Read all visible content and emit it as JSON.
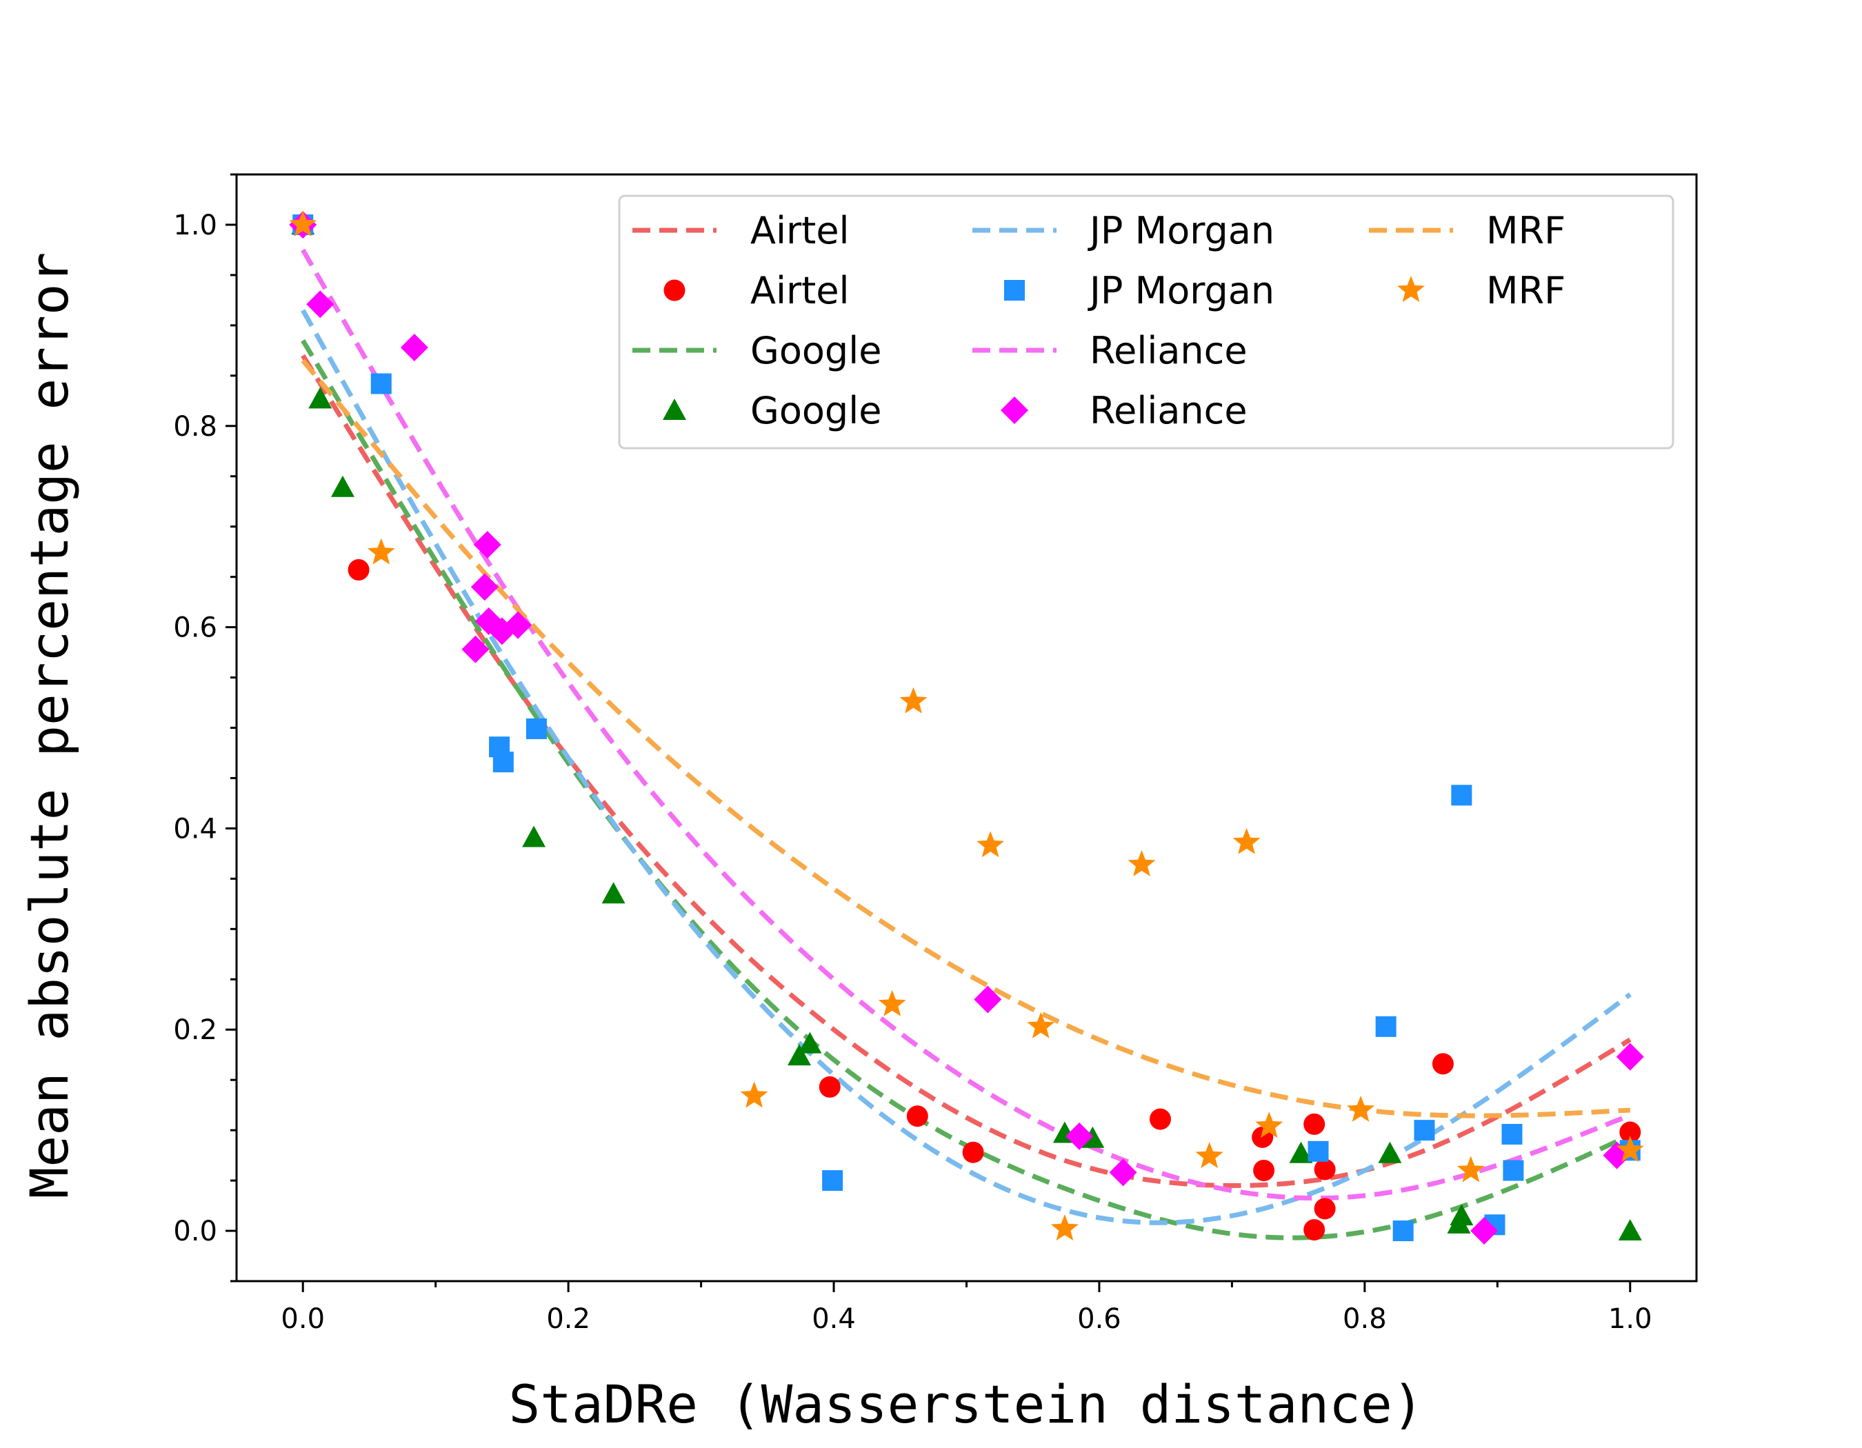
{
  "chart_data": {
    "type": "scatter",
    "xlabel": "StaDRe (Wasserstein distance)",
    "ylabel": "Mean absolute percentage error",
    "xlim": [
      -0.05,
      1.05
    ],
    "ylim": [
      -0.05,
      1.05
    ],
    "xticks": [
      "0.0",
      "0.2",
      "0.4",
      "0.6",
      "0.8",
      "1.0"
    ],
    "yticks": [
      "0.0",
      "0.2",
      "0.4",
      "0.6",
      "0.8",
      "1.0"
    ],
    "grid": false,
    "legend_position": "top-right",
    "legend": [
      {
        "label": "Airtel",
        "kind": "line",
        "series": 0
      },
      {
        "label": "Airtel",
        "kind": "marker",
        "series": 0
      },
      {
        "label": "Google",
        "kind": "line",
        "series": 1
      },
      {
        "label": "Google",
        "kind": "marker",
        "series": 1
      },
      {
        "label": "JP Morgan",
        "kind": "line",
        "series": 2
      },
      {
        "label": "JP Morgan",
        "kind": "marker",
        "series": 2
      },
      {
        "label": "Reliance",
        "kind": "line",
        "series": 3
      },
      {
        "label": "Reliance",
        "kind": "marker",
        "series": 3
      },
      {
        "label": "MRF",
        "kind": "line",
        "series": 4
      },
      {
        "label": "MRF",
        "kind": "marker",
        "series": 4
      }
    ],
    "series": [
      {
        "name": "Airtel",
        "color": "#ff0000",
        "line_color": "#f06060",
        "marker": "circle",
        "fit": {
          "x": [
            0,
            0.2,
            0.4,
            0.6,
            0.7,
            0.8,
            1.0
          ],
          "y": [
            0.87,
            0.47,
            0.2,
            0.06,
            0.045,
            0.06,
            0.19
          ]
        },
        "points": [
          [
            0,
            1.0
          ],
          [
            0.042,
            0.657
          ],
          [
            0.397,
            0.143
          ],
          [
            0.463,
            0.114
          ],
          [
            0.505,
            0.078
          ],
          [
            0.646,
            0.111
          ],
          [
            0.723,
            0.093
          ],
          [
            0.724,
            0.06
          ],
          [
            0.762,
            0.106
          ],
          [
            0.762,
            0.001
          ],
          [
            0.77,
            0.061
          ],
          [
            0.77,
            0.022
          ],
          [
            0.859,
            0.166
          ],
          [
            1.0,
            0.098
          ]
        ]
      },
      {
        "name": "Google",
        "color": "#008000",
        "line_color": "#5aad5a",
        "marker": "triangle",
        "fit": {
          "x": [
            0,
            0.2,
            0.4,
            0.6,
            0.7,
            0.8,
            1.0
          ],
          "y": [
            0.885,
            0.465,
            0.17,
            0.03,
            -0.003,
            -0.001,
            0.095
          ]
        },
        "points": [
          [
            0,
            1.0
          ],
          [
            0.013,
            0.827
          ],
          [
            0.03,
            0.739
          ],
          [
            0.174,
            0.391
          ],
          [
            0.234,
            0.335
          ],
          [
            0.374,
            0.174
          ],
          [
            0.382,
            0.186
          ],
          [
            0.574,
            0.097
          ],
          [
            0.595,
            0.092
          ],
          [
            0.752,
            0.077
          ],
          [
            0.819,
            0.077
          ],
          [
            0.871,
            0.007
          ],
          [
            0.873,
            0.015
          ],
          [
            1.0,
            0.0
          ]
        ]
      },
      {
        "name": "JP Morgan",
        "color": "#1e90ff",
        "line_color": "#78b9ee",
        "marker": "square",
        "fit": {
          "x": [
            0,
            0.2,
            0.4,
            0.6,
            0.7,
            0.8,
            1.0
          ],
          "y": [
            0.915,
            0.47,
            0.155,
            0.013,
            0.015,
            0.06,
            0.235
          ]
        },
        "points": [
          [
            0,
            1.0
          ],
          [
            0.059,
            0.842
          ],
          [
            0.148,
            0.481
          ],
          [
            0.151,
            0.466
          ],
          [
            0.176,
            0.499
          ],
          [
            0.399,
            0.05
          ],
          [
            0.765,
            0.079
          ],
          [
            0.816,
            0.203
          ],
          [
            0.829,
            0.0
          ],
          [
            0.845,
            0.1
          ],
          [
            0.873,
            0.433
          ],
          [
            0.898,
            0.006
          ],
          [
            0.911,
            0.096
          ],
          [
            0.912,
            0.06
          ],
          [
            1.0,
            0.08
          ]
        ]
      },
      {
        "name": "Reliance",
        "color": "#ff00ff",
        "line_color": "#f46ef4",
        "marker": "diamond",
        "fit": {
          "x": [
            0,
            0.2,
            0.4,
            0.6,
            0.7,
            0.8,
            1.0
          ],
          "y": [
            0.975,
            0.545,
            0.25,
            0.08,
            0.04,
            0.035,
            0.115
          ]
        },
        "points": [
          [
            0,
            1.0
          ],
          [
            0.013,
            0.921
          ],
          [
            0.084,
            0.878
          ],
          [
            0.13,
            0.578
          ],
          [
            0.137,
            0.64
          ],
          [
            0.139,
            0.682
          ],
          [
            0.14,
            0.606
          ],
          [
            0.15,
            0.596
          ],
          [
            0.162,
            0.602
          ],
          [
            0.516,
            0.23
          ],
          [
            0.585,
            0.094
          ],
          [
            0.618,
            0.058
          ],
          [
            0.89,
            0.0
          ],
          [
            0.99,
            0.075
          ],
          [
            1.0,
            0.173
          ]
        ]
      },
      {
        "name": "MRF",
        "color": "#ff8c00",
        "line_color": "#f7a848",
        "marker": "star",
        "fit": {
          "x": [
            0,
            0.2,
            0.4,
            0.6,
            0.7,
            0.8,
            1.0
          ],
          "y": [
            0.865,
            0.565,
            0.34,
            0.19,
            0.145,
            0.12,
            0.12
          ]
        },
        "points": [
          [
            0,
            1.0
          ],
          [
            0.059,
            0.674
          ],
          [
            0.34,
            0.134
          ],
          [
            0.444,
            0.225
          ],
          [
            0.46,
            0.526
          ],
          [
            0.518,
            0.383
          ],
          [
            0.556,
            0.203
          ],
          [
            0.574,
            0.002
          ],
          [
            0.632,
            0.364
          ],
          [
            0.683,
            0.074
          ],
          [
            0.711,
            0.386
          ],
          [
            0.728,
            0.104
          ],
          [
            0.797,
            0.12
          ],
          [
            0.88,
            0.06
          ],
          [
            1.0,
            0.08
          ]
        ]
      }
    ]
  }
}
